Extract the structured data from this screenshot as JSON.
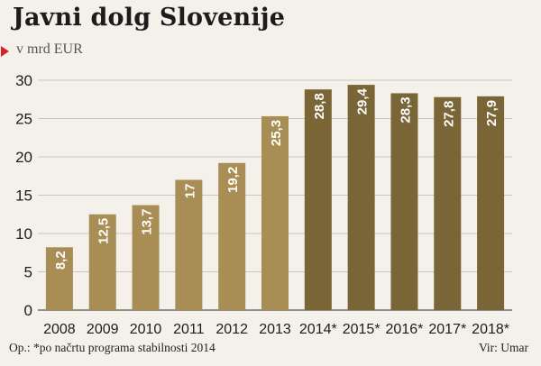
{
  "chart_data": {
    "type": "bar",
    "title": "Javni dolg Slovenije",
    "subtitle": "v mrd EUR",
    "categories": [
      "2008",
      "2009",
      "2010",
      "2011",
      "2012",
      "2013",
      "2014*",
      "2015*",
      "2016*",
      "2017*",
      "2018*"
    ],
    "values": [
      8.2,
      12.5,
      13.7,
      17,
      19.2,
      25.3,
      28.8,
      29.4,
      28.3,
      27.8,
      27.9
    ],
    "value_labels": [
      "8,2",
      "12,5",
      "13,7",
      "17",
      "19,2",
      "25,3",
      "28,8",
      "29,4",
      "28,3",
      "27,8",
      "27,9"
    ],
    "projected": [
      false,
      false,
      false,
      false,
      false,
      false,
      true,
      true,
      true,
      true,
      true
    ],
    "ylim": [
      0,
      30
    ],
    "yticks": [
      0,
      5,
      10,
      15,
      20,
      25,
      30
    ],
    "grid": true,
    "colors": {
      "actual": "#a88d55",
      "projected": "#7a6536",
      "grid": "#c9c6bf",
      "label": "#ffffff"
    }
  },
  "footer": {
    "note": "Op.: *po načrtu programa stabilnosti 2014",
    "source": "Vir: Umar"
  }
}
